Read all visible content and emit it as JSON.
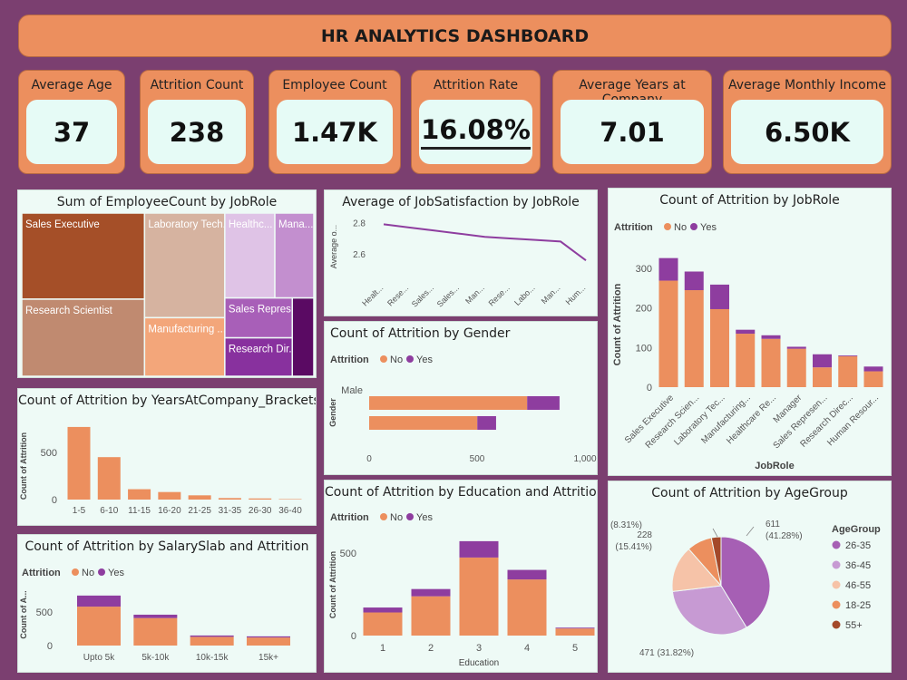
{
  "dashboard": {
    "title": "HR ANALYTICS DASHBOARD"
  },
  "kpis": [
    {
      "label": "Average Age",
      "value": "37"
    },
    {
      "label": "Attrition Count",
      "value": "238"
    },
    {
      "label": "Employee Count",
      "value": "1.47K"
    },
    {
      "label": "Attrition Rate",
      "value": "16.08%"
    },
    {
      "label": "Average Years at Company",
      "value": "7.01"
    },
    {
      "label": "Average Monthly Income",
      "value": "6.50K"
    }
  ],
  "legend": {
    "title": "Attrition",
    "no": "No",
    "yes": "Yes"
  },
  "colors": {
    "no": "#ec8f5e",
    "yes": "#8e3d9f",
    "page": "#7b3f70",
    "panel": "#eefaf6"
  },
  "chart_data": [
    {
      "id": "treemap",
      "type": "treemap",
      "title": "Sum of EmployeeCount by JobRole",
      "labels": [
        "Sales Executive",
        "Research Scientist",
        "Laboratory Tech...",
        "Manufacturing ...",
        "Healthc...",
        "Mana...",
        "Sales Repres...",
        "Research Dir...",
        ""
      ],
      "values": [
        326,
        292,
        259,
        145,
        131,
        102,
        83,
        80,
        52
      ],
      "colors": [
        "#a54f28",
        "#c08a70",
        "#d6b3a0",
        "#f3a67a",
        "#dfc3e6",
        "#c38fcf",
        "#a85fb8",
        "#88319e",
        "#5a0a63"
      ]
    },
    {
      "id": "satisfaction",
      "type": "line",
      "title": "Average of JobSatisfaction by JobRole",
      "ylabel": "Average o...",
      "categories": [
        "Healt...",
        "Rese...",
        "Sales...",
        "Sales...",
        "Man...",
        "Rese...",
        "Labo...",
        "Man...",
        "Hum..."
      ],
      "values": [
        2.79,
        2.77,
        2.75,
        2.73,
        2.71,
        2.7,
        2.69,
        2.68,
        2.56
      ],
      "yticks": [
        "2.6",
        "2.8"
      ],
      "ylim": [
        2.48,
        2.85
      ]
    },
    {
      "id": "jobrole",
      "type": "bar",
      "title": "Count of Attrition by JobRole",
      "xlabel": "JobRole",
      "ylabel": "Count of Attrition",
      "categories": [
        "Sales Executive",
        "Research Scien...",
        "Laboratory Tec...",
        "Manufacturing...",
        "Healthcare Re...",
        "Manager",
        "Sales Represen...",
        "Research Direc...",
        "Human Resour..."
      ],
      "series": [
        {
          "name": "No",
          "values": [
            269,
            245,
            197,
            135,
            122,
            97,
            50,
            78,
            40
          ]
        },
        {
          "name": "Yes",
          "values": [
            57,
            47,
            62,
            10,
            9,
            5,
            33,
            2,
            12
          ]
        }
      ],
      "yticks": [
        "0",
        "100",
        "200",
        "300"
      ],
      "ylim": [
        0,
        330
      ]
    },
    {
      "id": "years",
      "type": "bar",
      "title": "Count of Attrition by YearsAtCompany_Brackets",
      "ylabel": "Count of Attrition",
      "categories": [
        "1-5",
        "6-10",
        "11-15",
        "16-20",
        "21-25",
        "31-35",
        "26-30",
        "36-40"
      ],
      "values": [
        770,
        450,
        110,
        80,
        45,
        16,
        12,
        5
      ],
      "yticks": [
        "0",
        "500"
      ],
      "ylim": [
        0,
        830
      ]
    },
    {
      "id": "gender",
      "type": "bar",
      "title": "Count of Attrition by Gender",
      "ylabel": "Gender",
      "categories": [
        "Male",
        ""
      ],
      "series": [
        {
          "name": "No",
          "values": [
            732,
            501
          ]
        },
        {
          "name": "Yes",
          "values": [
            150,
            87
          ]
        }
      ],
      "xticks": [
        "0",
        "500",
        "1,000"
      ],
      "xlim": [
        0,
        1000
      ]
    },
    {
      "id": "salary",
      "type": "bar",
      "title": "Count of Attrition by SalarySlab and Attrition",
      "ylabel": "Count of A...",
      "categories": [
        "Upto 5k",
        "5k-10k",
        "10k-15k",
        "15k+"
      ],
      "series": [
        {
          "name": "No",
          "values": [
            580,
            410,
            130,
            120
          ]
        },
        {
          "name": "Yes",
          "values": [
            165,
            50,
            20,
            17
          ]
        }
      ],
      "yticks": [
        "0",
        "500"
      ],
      "ylim": [
        0,
        760
      ]
    },
    {
      "id": "education",
      "type": "bar",
      "title": "Count of Attrition by Education and Attrition",
      "xlabel": "Education",
      "ylabel": "Count of Attrition",
      "categories": [
        "1",
        "2",
        "3",
        "4",
        "5"
      ],
      "series": [
        {
          "name": "No",
          "values": [
            140,
            238,
            473,
            340,
            43
          ]
        },
        {
          "name": "Yes",
          "values": [
            30,
            44,
            99,
            58,
            5
          ]
        }
      ],
      "yticks": [
        "0",
        "500"
      ],
      "ylim": [
        0,
        600
      ]
    },
    {
      "id": "agegroup",
      "type": "pie",
      "title": "Count of Attrition by AgeGroup",
      "legend_title": "AgeGroup",
      "labels": [
        "26-35",
        "36-45",
        "46-55",
        "18-25",
        "55+"
      ],
      "values": [
        611,
        471,
        228,
        123,
        47
      ],
      "slice_labels": [
        "611\n(41.28%)",
        "471 (31.82%)",
        "228\n(15.41%)",
        "123 (8.31%)",
        ""
      ],
      "colors": [
        "#a65fb4",
        "#c79ad3",
        "#f6c3a8",
        "#ec8f5e",
        "#a4492a"
      ]
    }
  ]
}
